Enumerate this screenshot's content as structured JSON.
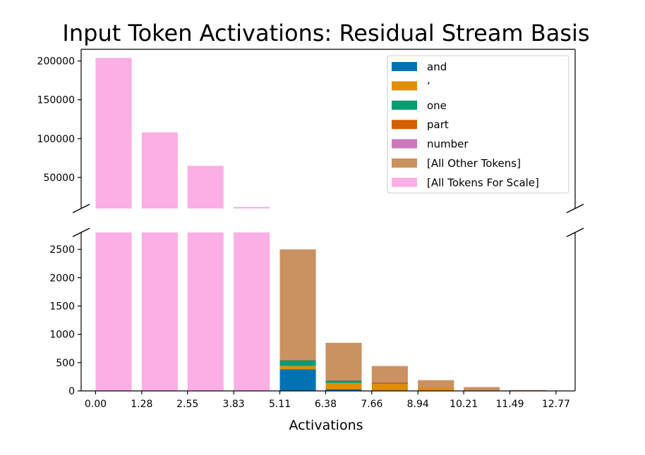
{
  "chart_data": {
    "type": "bar",
    "title": "Input Token Activations: Residual Stream Basis",
    "xlabel": "Activations",
    "ylabel": "",
    "broken_axis": true,
    "x_ticks": [
      "0.00",
      "1.28",
      "2.55",
      "3.83",
      "5.11",
      "6.38",
      "7.66",
      "8.94",
      "10.21",
      "11.49",
      "12.77"
    ],
    "xlim": [
      -0.4,
      13.3
    ],
    "upper_panel": {
      "ylim": [
        10000,
        215000
      ],
      "y_ticks": [
        "50000",
        "100000",
        "150000",
        "200000"
      ]
    },
    "lower_panel": {
      "ylim": [
        0,
        2800
      ],
      "y_ticks": [
        "0",
        "500",
        "1000",
        "1500",
        "2000",
        "2500"
      ]
    },
    "bin_starts": [
      0.0,
      1.28,
      2.55,
      3.83,
      5.11,
      6.38,
      7.66,
      8.94,
      10.21,
      11.49
    ],
    "bin_width": 1.0,
    "series": [
      {
        "name": "and",
        "color": "#0173b2",
        "values": [
          0,
          0,
          0,
          0,
          380,
          30,
          5,
          0,
          0,
          0
        ]
      },
      {
        "name": "’",
        "color": "#de8f05",
        "values": [
          0,
          0,
          0,
          0,
          60,
          110,
          120,
          50,
          8,
          5
        ]
      },
      {
        "name": "one",
        "color": "#029e73",
        "values": [
          0,
          0,
          0,
          0,
          100,
          40,
          5,
          0,
          0,
          0
        ]
      },
      {
        "name": "part",
        "color": "#d55e00",
        "values": [
          0,
          0,
          0,
          0,
          10,
          10,
          20,
          5,
          0,
          0
        ]
      },
      {
        "name": "number",
        "color": "#cc78bc",
        "values": [
          0,
          0,
          0,
          0,
          10,
          10,
          5,
          0,
          0,
          0
        ]
      },
      {
        "name": "[All Other Tokens]",
        "color": "#ca9161",
        "values": [
          0,
          0,
          0,
          0,
          1940,
          650,
          285,
          135,
          60,
          10
        ]
      },
      {
        "name": "[All Tokens For Scale]",
        "color": "#fbafe4",
        "values": [
          204000,
          108000,
          65000,
          12000,
          0,
          0,
          0,
          0,
          0,
          0
        ]
      }
    ],
    "legend_position": "upper right of upper panel",
    "grid": false
  }
}
